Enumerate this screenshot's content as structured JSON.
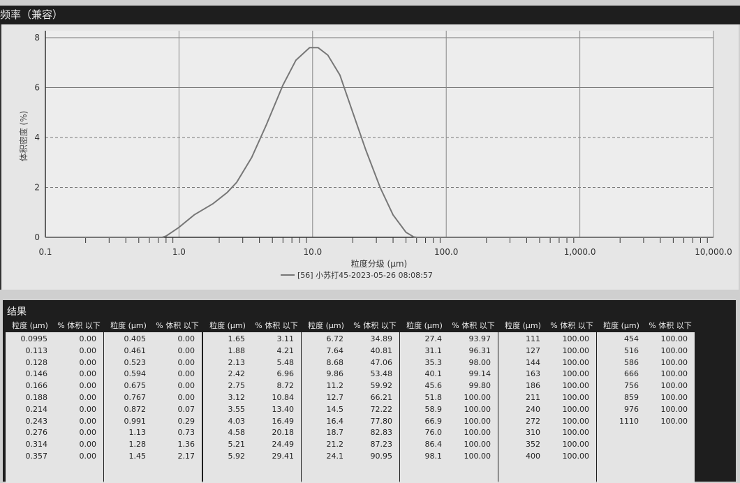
{
  "header": {
    "title": "频率（兼容）"
  },
  "chart_data": {
    "type": "line",
    "xlabel": "粒度分级 (μm)",
    "ylabel": "体积密度 (%)",
    "xscale": "log",
    "xlim": [
      0.1,
      10000
    ],
    "ylim": [
      0,
      8
    ],
    "xticks": [
      "0.1",
      "1.0",
      "10.0",
      "100.0",
      "1,000.0",
      "10,000.0"
    ],
    "yticks": [
      "0",
      "2",
      "4",
      "6",
      "8"
    ],
    "grid": true,
    "legend_position": "bottom-center",
    "series": [
      {
        "name": "[56] 小苏打45-2023-05-26 08:08:57",
        "color": "#777777",
        "x": [
          0.1,
          0.75,
          0.8,
          1.0,
          1.3,
          1.8,
          2.3,
          2.7,
          3.5,
          4.5,
          6,
          7.5,
          9.5,
          11,
          13,
          16,
          20,
          25,
          32,
          40,
          50,
          57,
          60,
          10000
        ],
        "y": [
          0,
          0,
          0.05,
          0.4,
          0.9,
          1.35,
          1.8,
          2.2,
          3.2,
          4.5,
          6.1,
          7.1,
          7.6,
          7.6,
          7.3,
          6.5,
          5.0,
          3.5,
          2.0,
          0.9,
          0.2,
          0.02,
          0,
          0
        ]
      }
    ]
  },
  "results": {
    "title": "结果",
    "col_size": "粒度 (μm)",
    "col_vol": "% 体积 以下",
    "groups": [
      [
        [
          "0.0995",
          "0.00"
        ],
        [
          "0.113",
          "0.00"
        ],
        [
          "0.128",
          "0.00"
        ],
        [
          "0.146",
          "0.00"
        ],
        [
          "0.166",
          "0.00"
        ],
        [
          "0.188",
          "0.00"
        ],
        [
          "0.214",
          "0.00"
        ],
        [
          "0.243",
          "0.00"
        ],
        [
          "0.276",
          "0.00"
        ],
        [
          "0.314",
          "0.00"
        ],
        [
          "0.357",
          "0.00"
        ]
      ],
      [
        [
          "0.405",
          "0.00"
        ],
        [
          "0.461",
          "0.00"
        ],
        [
          "0.523",
          "0.00"
        ],
        [
          "0.594",
          "0.00"
        ],
        [
          "0.675",
          "0.00"
        ],
        [
          "0.767",
          "0.00"
        ],
        [
          "0.872",
          "0.07"
        ],
        [
          "0.991",
          "0.29"
        ],
        [
          "1.13",
          "0.73"
        ],
        [
          "1.28",
          "1.36"
        ],
        [
          "1.45",
          "2.17"
        ]
      ],
      [
        [
          "1.65",
          "3.11"
        ],
        [
          "1.88",
          "4.21"
        ],
        [
          "2.13",
          "5.48"
        ],
        [
          "2.42",
          "6.96"
        ],
        [
          "2.75",
          "8.72"
        ],
        [
          "3.12",
          "10.84"
        ],
        [
          "3.55",
          "13.40"
        ],
        [
          "4.03",
          "16.49"
        ],
        [
          "4.58",
          "20.18"
        ],
        [
          "5.21",
          "24.49"
        ],
        [
          "5.92",
          "29.41"
        ]
      ],
      [
        [
          "6.72",
          "34.89"
        ],
        [
          "7.64",
          "40.81"
        ],
        [
          "8.68",
          "47.06"
        ],
        [
          "9.86",
          "53.48"
        ],
        [
          "11.2",
          "59.92"
        ],
        [
          "12.7",
          "66.21"
        ],
        [
          "14.5",
          "72.22"
        ],
        [
          "16.4",
          "77.80"
        ],
        [
          "18.7",
          "82.83"
        ],
        [
          "21.2",
          "87.23"
        ],
        [
          "24.1",
          "90.95"
        ]
      ],
      [
        [
          "27.4",
          "93.97"
        ],
        [
          "31.1",
          "96.31"
        ],
        [
          "35.3",
          "98.00"
        ],
        [
          "40.1",
          "99.14"
        ],
        [
          "45.6",
          "99.80"
        ],
        [
          "51.8",
          "100.00"
        ],
        [
          "58.9",
          "100.00"
        ],
        [
          "66.9",
          "100.00"
        ],
        [
          "76.0",
          "100.00"
        ],
        [
          "86.4",
          "100.00"
        ],
        [
          "98.1",
          "100.00"
        ]
      ],
      [
        [
          "111",
          "100.00"
        ],
        [
          "127",
          "100.00"
        ],
        [
          "144",
          "100.00"
        ],
        [
          "163",
          "100.00"
        ],
        [
          "186",
          "100.00"
        ],
        [
          "211",
          "100.00"
        ],
        [
          "240",
          "100.00"
        ],
        [
          "272",
          "100.00"
        ],
        [
          "310",
          "100.00"
        ],
        [
          "352",
          "100.00"
        ],
        [
          "400",
          "100.00"
        ]
      ],
      [
        [
          "454",
          "100.00"
        ],
        [
          "516",
          "100.00"
        ],
        [
          "586",
          "100.00"
        ],
        [
          "666",
          "100.00"
        ],
        [
          "756",
          "100.00"
        ],
        [
          "859",
          "100.00"
        ],
        [
          "976",
          "100.00"
        ],
        [
          "1110",
          "100.00"
        ]
      ]
    ]
  }
}
